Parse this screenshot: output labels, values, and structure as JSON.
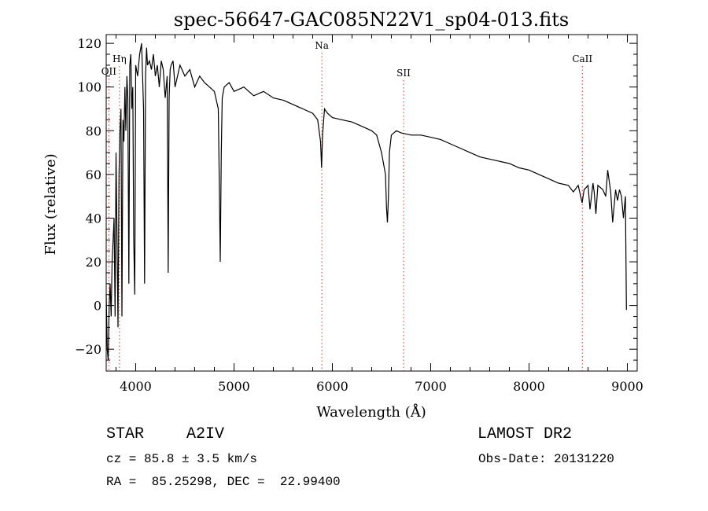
{
  "chart_data": {
    "type": "line",
    "title": "spec-56647-GAC085N22V1_sp04-013.fits",
    "xlabel": "Wavelength (Å)",
    "ylabel": "Flux (relative)",
    "xlim": [
      3700,
      9100
    ],
    "ylim": [
      -30,
      124
    ],
    "xticks": [
      4000,
      5000,
      6000,
      7000,
      8000,
      9000
    ],
    "yticks": [
      -20,
      0,
      20,
      40,
      60,
      80,
      100,
      120
    ],
    "grid": false,
    "line_color": "#000000",
    "series": [
      {
        "x": [
          3700,
          3710,
          3720,
          3730,
          3740,
          3750,
          3760,
          3770,
          3780,
          3790,
          3800,
          3810,
          3820,
          3830,
          3840,
          3850,
          3860,
          3870,
          3880,
          3890,
          3900,
          3910,
          3920,
          3930,
          3940,
          3950,
          3960,
          3970,
          3980,
          3990,
          4000,
          4020,
          4040,
          4060,
          4080,
          4090,
          4100,
          4110,
          4120,
          4140,
          4160,
          4180,
          4200,
          4220,
          4240,
          4260,
          4280,
          4300,
          4320,
          4330,
          4340,
          4350,
          4360,
          4380,
          4400,
          4450,
          4500,
          4550,
          4600,
          4650,
          4700,
          4750,
          4800,
          4840,
          4850,
          4860,
          4870,
          4880,
          4900,
          4950,
          5000,
          5100,
          5200,
          5300,
          5400,
          5500,
          5600,
          5700,
          5800,
          5850,
          5880,
          5890,
          5900,
          5920,
          5950,
          6000,
          6100,
          6200,
          6300,
          6400,
          6450,
          6500,
          6540,
          6550,
          6560,
          6570,
          6580,
          6600,
          6650,
          6700,
          6800,
          6900,
          7000,
          7100,
          7200,
          7300,
          7400,
          7500,
          7600,
          7700,
          7800,
          7900,
          8000,
          8100,
          8200,
          8300,
          8400,
          8450,
          8500,
          8540,
          8560,
          8600,
          8620,
          8650,
          8662,
          8680,
          8700,
          8750,
          8780,
          8800,
          8830,
          8850,
          8880,
          8900,
          8920,
          8940,
          8960,
          8980,
          8990
        ],
        "values": [
          5,
          -20,
          -25,
          0,
          10,
          -5,
          20,
          30,
          40,
          -5,
          70,
          30,
          -10,
          60,
          80,
          90,
          -5,
          85,
          75,
          100,
          80,
          105,
          95,
          10,
          110,
          115,
          90,
          100,
          30,
          5,
          110,
          105,
          115,
          120,
          90,
          10,
          105,
          118,
          110,
          112,
          108,
          115,
          105,
          110,
          100,
          112,
          108,
          95,
          105,
          15,
          95,
          108,
          110,
          112,
          100,
          110,
          105,
          108,
          100,
          105,
          102,
          100,
          98,
          90,
          55,
          20,
          70,
          95,
          100,
          102,
          98,
          100,
          96,
          98,
          95,
          94,
          92,
          90,
          88,
          85,
          75,
          63,
          78,
          90,
          88,
          86,
          85,
          84,
          82,
          80,
          78,
          70,
          60,
          45,
          38,
          50,
          70,
          78,
          80,
          79,
          78,
          78,
          77,
          76,
          74,
          72,
          70,
          68,
          67,
          66,
          65,
          63,
          62,
          60,
          58,
          56,
          55,
          52,
          55,
          47,
          53,
          55,
          44,
          56,
          52,
          42,
          55,
          53,
          50,
          62,
          52,
          38,
          53,
          48,
          53,
          50,
          40,
          50,
          -2
        ]
      }
    ],
    "annotations": [
      {
        "label": "OII",
        "x": 3727
      },
      {
        "label": "Hη",
        "x": 3835
      },
      {
        "label": "Na",
        "x": 5893
      },
      {
        "label": "SII",
        "x": 6724
      },
      {
        "label": "CaII",
        "x": 8542
      }
    ],
    "annotation_line_color": "#e03030"
  },
  "info": {
    "class": "STAR",
    "subclass": "A2IV",
    "survey": "LAMOST DR2",
    "cz_line": "cz = 85.8 ± 3.5 km/s",
    "obs_date_line": "Obs-Date: 20131220",
    "coords_line": "RA =  85.25298, DEC =  22.99400"
  }
}
